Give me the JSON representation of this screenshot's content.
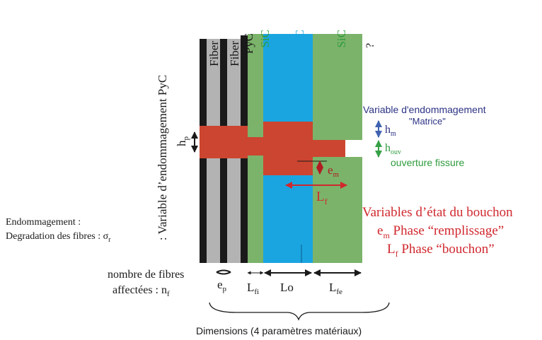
{
  "colors": {
    "black": "#1a1a1a",
    "fiber_gray": "#b3b3b3",
    "sic_green": "#7bb36a",
    "b4c_blue": "#1aa5e1",
    "crack_red": "#cc4530",
    "dark_red": "#b01c22",
    "arrow_red": "#d0282e",
    "label_red": "#d0282e",
    "navy": "#2d3384",
    "arrow_blue": "#3f62b0",
    "label_green": "#2e9b3d",
    "arrow_green": "#36a047"
  },
  "layers": {
    "pyc_top": "PyC",
    "sic_left": "SiC",
    "b4c_b": "B",
    "b4c_sub": "4",
    "b4c_c": "C",
    "sic_right": "SiC",
    "fiber1": "Fiber",
    "fiber2": "Fiber",
    "question": "?"
  },
  "left_labels": {
    "vertical_pyc": ": Variable d’endommagement PyC",
    "hp_main": "h",
    "hp_sub": "p",
    "endommagement": "Endommagement :",
    "degradation": "Degradation des fibres : σ",
    "degradation_sub": "r"
  },
  "right_labels": {
    "variable_line1": "Variable d'endommagement",
    "variable_line2": "\"Matrice\"",
    "hm_main": "h",
    "hm_sub": "m",
    "houv_main": "h",
    "houv_sub": "ouv",
    "ouverture": "ouverture fissure",
    "em_main": "e",
    "em_sub": "m",
    "lf_main": "L",
    "lf_sub": "f",
    "etat_title": "Variables d’état du bouchon",
    "etat_em_main": "e",
    "etat_em_sub": "m",
    "etat_em_text": " Phase “remplissage”",
    "etat_lf_main": "L",
    "etat_lf_sub": "f",
    "etat_lf_text": " Phase “bouchon”"
  },
  "bottom_labels": {
    "nombre_line1": "nombre de fibres",
    "nombre_line2": "affectées : n",
    "nombre_sub": "f",
    "ep_main": "e",
    "ep_sub": "p",
    "lfi_main": "L",
    "lfi_sub": "fi",
    "lo": "Lo",
    "lfe_main": "L",
    "lfe_sub": "fe",
    "dimensions": "Dimensions (4 paramètres matériaux)"
  }
}
